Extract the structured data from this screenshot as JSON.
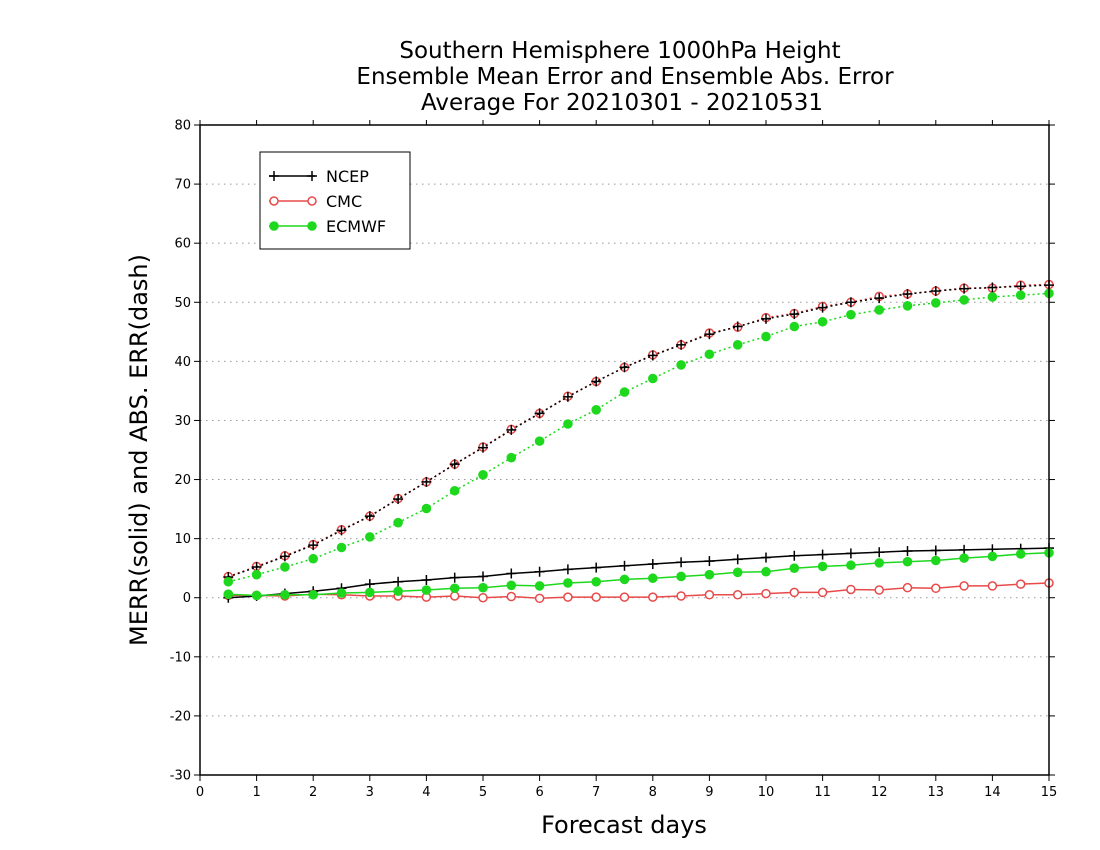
{
  "chart_data": {
    "type": "line",
    "title": [
      "Southern Hemisphere 1000hPa Height",
      "Ensemble Mean Error and Ensemble Abs. Error",
      "Average For 20210301 - 20210531"
    ],
    "xlabel": "Forecast days",
    "ylabel": "MERR(solid) and ABS. ERR(dash)",
    "xlim": [
      0,
      15
    ],
    "ylim": [
      -30,
      80
    ],
    "xticks": [
      0,
      1,
      2,
      3,
      4,
      5,
      6,
      7,
      8,
      9,
      10,
      11,
      12,
      13,
      14,
      15
    ],
    "yticks": [
      -30,
      -20,
      -10,
      0,
      10,
      20,
      30,
      40,
      50,
      60,
      70,
      80
    ],
    "grid": "horizontal dotted",
    "legend_position": "top-left",
    "x": [
      0.5,
      1,
      1.5,
      2,
      2.5,
      3,
      3.5,
      4,
      4.5,
      5,
      5.5,
      6,
      6.5,
      7,
      7.5,
      8,
      8.5,
      9,
      9.5,
      10,
      10.5,
      11,
      11.5,
      12,
      12.5,
      13,
      13.5,
      14,
      14.5,
      15
    ],
    "series": [
      {
        "name": "NCEP",
        "color": "#000000",
        "marker": "plus",
        "merr": [
          0.0,
          0.3,
          0.7,
          1.1,
          1.6,
          2.3,
          2.7,
          3.0,
          3.4,
          3.6,
          4.1,
          4.4,
          4.8,
          5.1,
          5.4,
          5.7,
          6.0,
          6.2,
          6.5,
          6.8,
          7.1,
          7.3,
          7.5,
          7.7,
          7.9,
          8.0,
          8.1,
          8.2,
          8.3,
          8.4
        ],
        "abs_err": [
          3.5,
          5.2,
          7.0,
          8.9,
          11.4,
          13.8,
          16.7,
          19.6,
          22.6,
          25.4,
          28.4,
          31.2,
          34.0,
          36.6,
          39.0,
          41.0,
          42.8,
          44.6,
          45.9,
          47.2,
          48.0,
          49.1,
          50.0,
          50.7,
          51.4,
          51.9,
          52.3,
          52.5,
          52.7,
          52.9
        ]
      },
      {
        "name": "CMC",
        "color": "#e84a4a",
        "marker": "open-circle",
        "merr": [
          0.4,
          0.4,
          0.3,
          0.6,
          0.5,
          0.3,
          0.3,
          0.1,
          0.3,
          0.0,
          0.2,
          -0.1,
          0.1,
          0.1,
          0.1,
          0.1,
          0.3,
          0.5,
          0.5,
          0.7,
          0.9,
          0.9,
          1.4,
          1.3,
          1.7,
          1.6,
          2.0,
          2.0,
          2.3,
          2.5
        ],
        "abs_err": [
          3.6,
          5.3,
          7.1,
          9.0,
          11.5,
          13.8,
          16.8,
          19.6,
          22.6,
          25.5,
          28.5,
          31.2,
          34.1,
          36.6,
          39.0,
          41.1,
          42.8,
          44.8,
          45.8,
          47.4,
          48.1,
          49.3,
          50.0,
          51.0,
          51.4,
          51.9,
          52.4,
          52.4,
          52.9,
          53.0
        ]
      },
      {
        "name": "ECMWF",
        "color": "#1ed81e",
        "marker": "filled-circle",
        "merr": [
          0.6,
          0.4,
          0.5,
          0.5,
          0.8,
          0.9,
          1.1,
          1.3,
          1.6,
          1.7,
          2.1,
          2.0,
          2.5,
          2.7,
          3.1,
          3.3,
          3.6,
          3.9,
          4.3,
          4.4,
          5.0,
          5.3,
          5.5,
          5.9,
          6.1,
          6.3,
          6.7,
          7.0,
          7.4,
          7.6
        ],
        "abs_err": [
          2.7,
          3.9,
          5.2,
          6.6,
          8.5,
          10.3,
          12.7,
          15.1,
          18.1,
          20.8,
          23.7,
          26.5,
          29.4,
          31.8,
          34.8,
          37.1,
          39.4,
          41.2,
          42.8,
          44.2,
          45.9,
          46.7,
          47.9,
          48.7,
          49.4,
          49.9,
          50.4,
          50.9,
          51.2,
          51.5
        ]
      }
    ]
  }
}
